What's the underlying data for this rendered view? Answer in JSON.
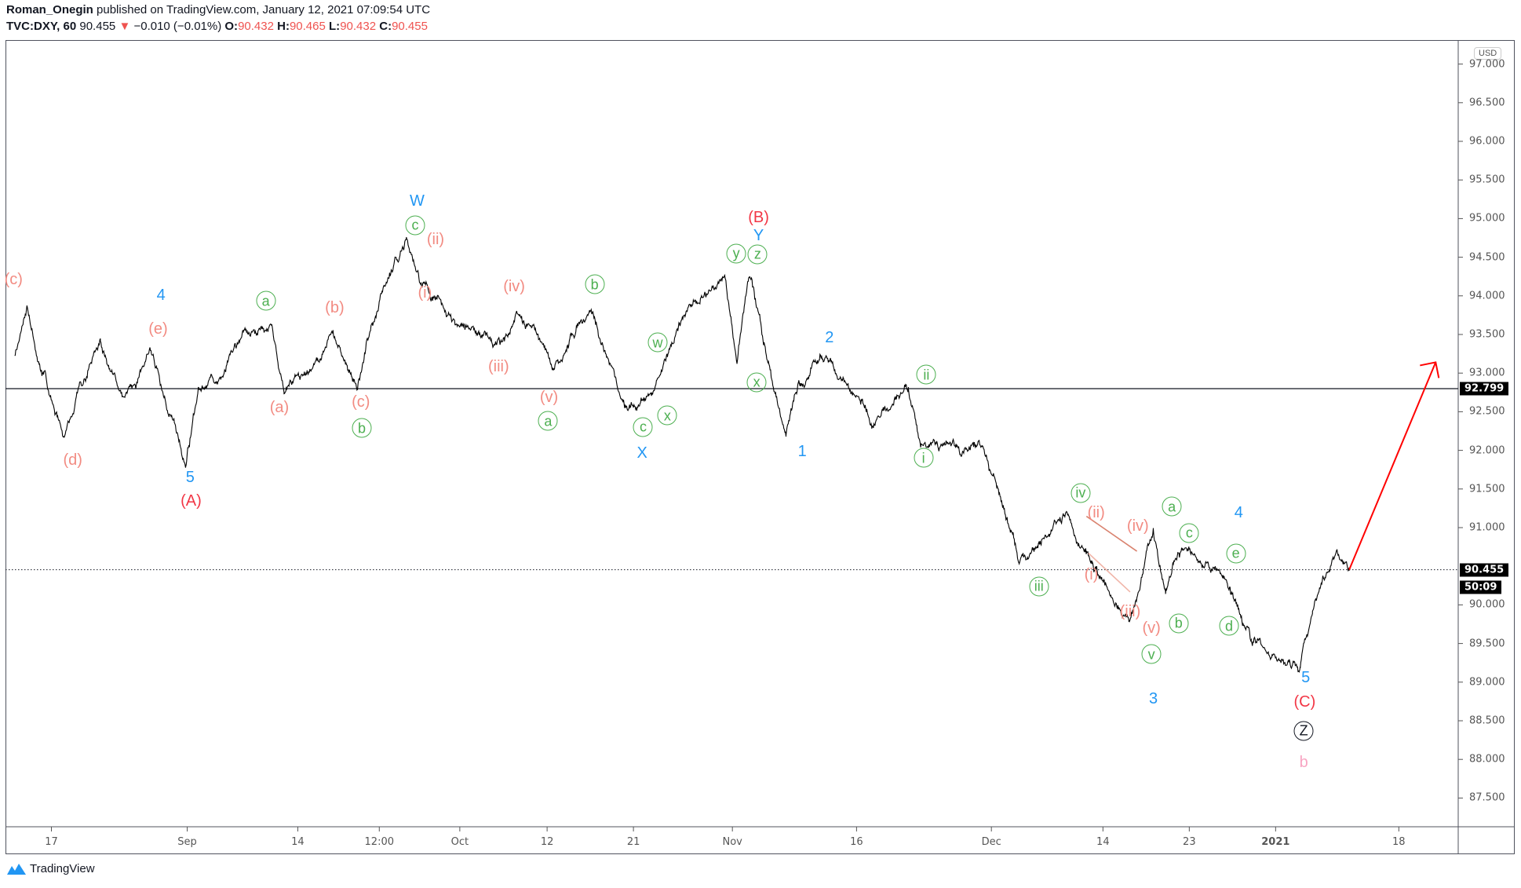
{
  "header": {
    "author": "Roman_Onegin",
    "published": "published on TradingView.com, January 12, 2021 07:09:54 UTC",
    "symbol": "TVC:DXY, 60",
    "last": "90.455",
    "change_icon": "triangle-down-icon",
    "change": "−0.010 (−0.01%)",
    "o_label": "O:",
    "o": "90.432",
    "h_label": "H:",
    "h": "90.465",
    "l_label": "L:",
    "l": "90.432",
    "c_label": "C:",
    "c": "90.455"
  },
  "axis": {
    "currency": "USD",
    "price_ticks": [
      "97.000",
      "96.500",
      "96.000",
      "95.500",
      "95.000",
      "94.500",
      "94.000",
      "93.500",
      "93.000",
      "92.500",
      "92.000",
      "91.500",
      "91.000",
      "90.000",
      "89.500",
      "89.000",
      "88.500",
      "88.000",
      "87.500"
    ],
    "time_ticks": [
      "17",
      "Sep",
      "14",
      "12:00",
      "Oct",
      "12",
      "21",
      "Nov",
      "16",
      "Dec",
      "14",
      "23",
      "2021",
      "18"
    ],
    "horizontal_line_tag": "92.799",
    "last_price_tag": "90.455",
    "countdown_tag": "50:09"
  },
  "colors": {
    "blue": "#2196f3",
    "red": "#f23645",
    "salmon": "#f28b82",
    "green": "#4caf50",
    "pink": "#f8a5c2",
    "black": "#131722",
    "arrow": "#ff0000",
    "trendline": "#d9826e"
  },
  "labels": [
    {
      "t": "(c)",
      "s": "salmon"
    },
    {
      "t": "4",
      "s": "blue"
    },
    {
      "t": "(e)",
      "s": "salmon"
    },
    {
      "t": "(d)",
      "s": "salmon"
    },
    {
      "t": "5",
      "s": "blue"
    },
    {
      "t": "(A)",
      "s": "red"
    },
    {
      "t": "a",
      "s": "green"
    },
    {
      "t": "(a)",
      "s": "salmon"
    },
    {
      "t": "(b)",
      "s": "salmon"
    },
    {
      "t": "(c)",
      "s": "salmon"
    },
    {
      "t": "b",
      "s": "green"
    },
    {
      "t": "W",
      "s": "blue"
    },
    {
      "t": "c",
      "s": "green"
    },
    {
      "t": "(ii)",
      "s": "salmon"
    },
    {
      "t": "(i)",
      "s": "salmon"
    },
    {
      "t": "(iv)",
      "s": "salmon"
    },
    {
      "t": "(iii)",
      "s": "salmon"
    },
    {
      "t": "(v)",
      "s": "salmon"
    },
    {
      "t": "a",
      "s": "green"
    },
    {
      "t": "b",
      "s": "green"
    },
    {
      "t": "w",
      "s": "green"
    },
    {
      "t": "c",
      "s": "green"
    },
    {
      "t": "x",
      "s": "green"
    },
    {
      "t": "X",
      "s": "blue"
    },
    {
      "t": "(B)",
      "s": "red"
    },
    {
      "t": "Y",
      "s": "blue"
    },
    {
      "t": "y",
      "s": "green"
    },
    {
      "t": "z",
      "s": "green"
    },
    {
      "t": "x",
      "s": "green"
    },
    {
      "t": "2",
      "s": "blue"
    },
    {
      "t": "1",
      "s": "blue"
    },
    {
      "t": "ii",
      "s": "green"
    },
    {
      "t": "i",
      "s": "green"
    },
    {
      "t": "iv",
      "s": "green"
    },
    {
      "t": "(ii)",
      "s": "salmon"
    },
    {
      "t": "(iv)",
      "s": "salmon"
    },
    {
      "t": "iii",
      "s": "green"
    },
    {
      "t": "(i)",
      "s": "salmon"
    },
    {
      "t": "(iii)",
      "s": "salmon"
    },
    {
      "t": "(v)",
      "s": "salmon"
    },
    {
      "t": "v",
      "s": "green"
    },
    {
      "t": "3",
      "s": "blue"
    },
    {
      "t": "a",
      "s": "green"
    },
    {
      "t": "c",
      "s": "green"
    },
    {
      "t": "b",
      "s": "green"
    },
    {
      "t": "4",
      "s": "blue"
    },
    {
      "t": "e",
      "s": "green"
    },
    {
      "t": "d",
      "s": "green"
    },
    {
      "t": "5",
      "s": "blue"
    },
    {
      "t": "(C)",
      "s": "red"
    },
    {
      "t": "Z",
      "s": "black"
    },
    {
      "t": "b",
      "s": "pink"
    }
  ],
  "chart_data": {
    "type": "line",
    "title": "",
    "interval": "60",
    "horizontal_line": 92.799,
    "last_price": 90.455,
    "ylim": [
      87.2,
      97.2
    ],
    "swing_points": [
      [
        "2020-08-12",
        93.24
      ],
      [
        "2020-08-13",
        93.87
      ],
      [
        "2020-08-14",
        93.12
      ],
      [
        "2020-08-18",
        92.18
      ],
      [
        "2020-08-21",
        93.43
      ],
      [
        "2020-08-25",
        92.68
      ],
      [
        "2020-08-27",
        93.3
      ],
      [
        "2020-08-31",
        92.4
      ],
      [
        "2020-09-01",
        91.8
      ],
      [
        "2020-09-02",
        92.8
      ],
      [
        "2020-09-10",
        93.62
      ],
      [
        "2020-09-11",
        92.74
      ],
      [
        "2020-09-17",
        93.55
      ],
      [
        "2020-09-21",
        92.8
      ],
      [
        "2020-09-23",
        94.06
      ],
      [
        "2020-09-25",
        94.75
      ],
      [
        "2020-09-29",
        93.93
      ],
      [
        "2020-10-07",
        93.43
      ],
      [
        "2020-10-08",
        93.8
      ],
      [
        "2020-10-13",
        93.05
      ],
      [
        "2020-10-16",
        93.8
      ],
      [
        "2020-10-21",
        92.55
      ],
      [
        "2020-10-26",
        93.12
      ],
      [
        "2020-10-30",
        94.12
      ],
      [
        "2020-11-02",
        94.25
      ],
      [
        "2020-11-03",
        93.12
      ],
      [
        "2020-11-04",
        94.25
      ],
      [
        "2020-11-09",
        92.18
      ],
      [
        "2020-11-10",
        92.87
      ],
      [
        "2020-11-12",
        93.18
      ],
      [
        "2020-11-18",
        92.3
      ],
      [
        "2020-11-23",
        92.8
      ],
      [
        "2020-11-24",
        92.05
      ],
      [
        "2020-12-01",
        92.05
      ],
      [
        "2020-12-04",
        90.55
      ],
      [
        "2020-12-10",
        91.17
      ],
      [
        "2020-12-15",
        90.3
      ],
      [
        "2020-12-17",
        89.8
      ],
      [
        "2020-12-21",
        90.98
      ],
      [
        "2020-12-22",
        90.16
      ],
      [
        "2020-12-23",
        90.66
      ],
      [
        "2020-12-29",
        90.3
      ],
      [
        "2020-12-31",
        89.54
      ],
      [
        "2021-01-06",
        89.2
      ],
      [
        "2021-01-07",
        89.9
      ],
      [
        "2021-01-11",
        90.7
      ],
      [
        "2021-01-12",
        90.455
      ]
    ],
    "projection_arrow": [
      [
        "2021-01-12",
        90.455
      ],
      [
        "2021-01-19",
        93.14
      ]
    ]
  },
  "footer": {
    "brand": "TradingView",
    "logo_icon": "tradingview-logo-icon"
  }
}
